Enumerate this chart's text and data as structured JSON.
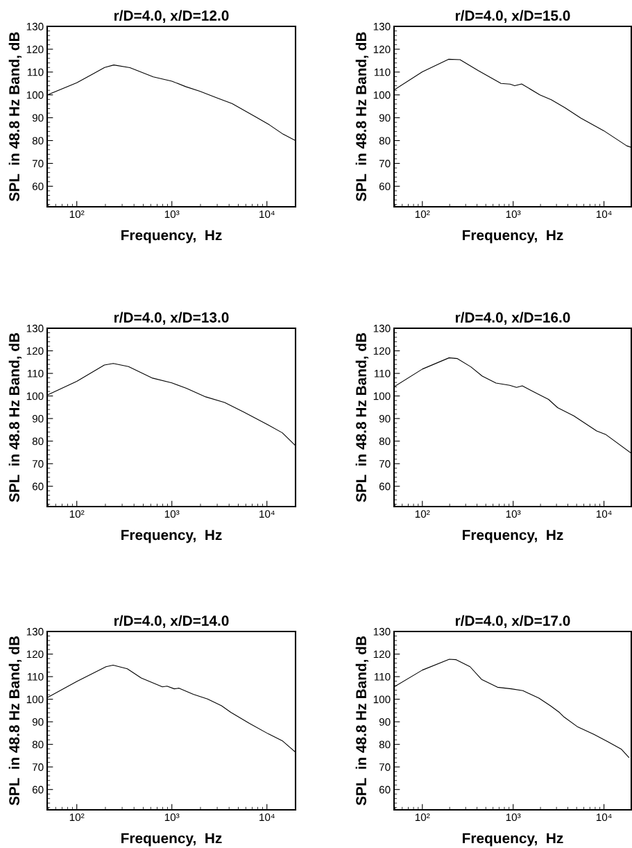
{
  "chart_data": [
    {
      "type": "line",
      "title": "r/D=4.0, x/D=12.0",
      "xlabel": "Frequency,  Hz",
      "ylabel": "SPL  in 48.8 Hz Band, dB",
      "log": "x",
      "grid": false,
      "marker": "none",
      "line_style": "solid",
      "xlim": [
        48.8,
        20000
      ],
      "ylim": [
        51,
        130
      ],
      "xticks": [
        {
          "value": 100,
          "label": "10²"
        },
        {
          "value": 1000,
          "label": "10³"
        },
        {
          "value": 10000,
          "label": "10⁴"
        }
      ],
      "yticks": [
        60,
        70,
        80,
        90,
        100,
        110,
        120,
        130
      ],
      "series": [
        {
          "color": "#000000",
          "x": [
            49,
            100,
            148,
            196,
            245,
            362,
            637,
            1000,
            1400,
            1970,
            3070,
            4300,
            7570,
            10600,
            14800,
            20000
          ],
          "values": [
            100,
            105.3,
            109.2,
            112.0,
            113.1,
            111.9,
            107.9,
            106.0,
            103.6,
            101.6,
            98.5,
            96.2,
            90.4,
            86.9,
            82.8,
            80.0
          ]
        }
      ]
    },
    {
      "type": "line",
      "title": "r/D=4.0, x/D=15.0",
      "xlabel": "Frequency,  Hz",
      "ylabel": "SPL  in 48.8 Hz Band, dB",
      "log": "x",
      "grid": false,
      "marker": "none",
      "line_style": "solid",
      "xlim": [
        48.8,
        20000
      ],
      "ylim": [
        51,
        130
      ],
      "xticks": [
        {
          "value": 100,
          "label": "10²"
        },
        {
          "value": 1000,
          "label": "10³"
        },
        {
          "value": 10000,
          "label": "10⁴"
        }
      ],
      "yticks": [
        60,
        70,
        80,
        90,
        100,
        110,
        120,
        130
      ],
      "series": [
        {
          "color": "#000000",
          "x": [
            49,
            100,
            194,
            260,
            413,
            736,
            927,
            1040,
            1240,
            1970,
            2630,
            3720,
            5570,
            9950,
            17800,
            20000
          ],
          "values": [
            102.2,
            110.1,
            115.6,
            115.4,
            110.6,
            105.0,
            104.7,
            104.0,
            104.8,
            100.0,
            97.9,
            94.4,
            89.8,
            84.3,
            77.7,
            77.0
          ]
        }
      ]
    },
    {
      "type": "line",
      "title": "r/D=4.0, x/D=13.0",
      "xlabel": "Frequency,  Hz",
      "ylabel": "SPL  in 48.8 Hz Band, dB",
      "log": "x",
      "grid": false,
      "marker": "none",
      "line_style": "solid",
      "xlim": [
        48.8,
        20000
      ],
      "ylim": [
        51,
        130
      ],
      "xticks": [
        {
          "value": 100,
          "label": "10²"
        },
        {
          "value": 1000,
          "label": "10³"
        },
        {
          "value": 10000,
          "label": "10⁴"
        }
      ],
      "yticks": [
        60,
        70,
        80,
        90,
        100,
        110,
        120,
        130
      ],
      "series": [
        {
          "color": "#000000",
          "x": [
            49,
            100,
            195,
            242,
            350,
            627,
            1000,
            1420,
            2270,
            3590,
            5700,
            10200,
            14500,
            20000
          ],
          "values": [
            100.4,
            106.5,
            113.7,
            114.4,
            113.0,
            107.9,
            105.8,
            103.4,
            99.6,
            97.1,
            92.9,
            87.3,
            83.7,
            78.0
          ]
        }
      ]
    },
    {
      "type": "line",
      "title": "r/D=4.0, x/D=16.0",
      "xlabel": "Frequency,  Hz",
      "ylabel": "SPL  in 48.8 Hz Band, dB",
      "log": "x",
      "grid": false,
      "marker": "none",
      "line_style": "solid",
      "xlim": [
        48.8,
        20000
      ],
      "ylim": [
        51,
        130
      ],
      "xticks": [
        {
          "value": 100,
          "label": "10²"
        },
        {
          "value": 1000,
          "label": "10³"
        },
        {
          "value": 10000,
          "label": "10⁴"
        }
      ],
      "yticks": [
        60,
        70,
        80,
        90,
        100,
        110,
        120,
        130
      ],
      "series": [
        {
          "color": "#000000",
          "x": [
            49,
            100,
            197,
            241,
            342,
            457,
            647,
            917,
            1090,
            1260,
            1840,
            2450,
            3090,
            4650,
            8300,
            10400,
            19900
          ],
          "values": [
            104.1,
            111.9,
            116.9,
            116.6,
            112.9,
            108.8,
            105.7,
            104.7,
            103.8,
            104.5,
            101.0,
            98.5,
            94.8,
            91.2,
            84.5,
            83.0,
            74.7
          ]
        }
      ]
    },
    {
      "type": "line",
      "title": "r/D=4.0, x/D=14.0",
      "xlabel": "Frequency,  Hz",
      "ylabel": "SPL  in 48.8 Hz Band, dB",
      "log": "x",
      "grid": false,
      "marker": "none",
      "line_style": "solid",
      "xlim": [
        48.8,
        20000
      ],
      "ylim": [
        51,
        130
      ],
      "xticks": [
        {
          "value": 100,
          "label": "10²"
        },
        {
          "value": 1000,
          "label": "10³"
        },
        {
          "value": 10000,
          "label": "10⁴"
        }
      ],
      "yticks": [
        60,
        70,
        80,
        90,
        100,
        110,
        120,
        130
      ],
      "series": [
        {
          "color": "#000000",
          "x": [
            49,
            100,
            203,
            241,
            340,
            476,
            795,
            890,
            1060,
            1190,
            1680,
            2370,
            3330,
            4170,
            6560,
            10300,
            14500,
            20000
          ],
          "values": [
            100.7,
            107.9,
            114.4,
            115.1,
            113.5,
            109.4,
            105.5,
            105.8,
            104.6,
            104.9,
            102.2,
            100.1,
            97.1,
            94.2,
            89.3,
            84.7,
            81.6,
            76.5
          ]
        }
      ]
    },
    {
      "type": "line",
      "title": "r/D=4.0, x/D=17.0",
      "xlabel": "Frequency,  Hz",
      "ylabel": "SPL  in 48.8 Hz Band, dB",
      "log": "x",
      "grid": false,
      "marker": "none",
      "line_style": "solid",
      "xlim": [
        48.8,
        20000
      ],
      "ylim": [
        51,
        130
      ],
      "xticks": [
        {
          "value": 100,
          "label": "10²"
        },
        {
          "value": 1000,
          "label": "10³"
        },
        {
          "value": 10000,
          "label": "10⁴"
        }
      ],
      "yticks": [
        60,
        70,
        80,
        90,
        100,
        110,
        120,
        130
      ],
      "series": [
        {
          "color": "#000000",
          "x": [
            49,
            100,
            198,
            236,
            335,
            448,
            672,
            953,
            1280,
            1920,
            2570,
            3240,
            3640,
            5150,
            7750,
            11000,
            15600,
            18800
          ],
          "values": [
            105.5,
            112.9,
            117.7,
            117.5,
            114.4,
            108.8,
            105.3,
            104.6,
            103.8,
            100.5,
            97.1,
            94.1,
            92.1,
            87.7,
            84.4,
            81.2,
            77.8,
            74.2
          ]
        }
      ]
    }
  ]
}
